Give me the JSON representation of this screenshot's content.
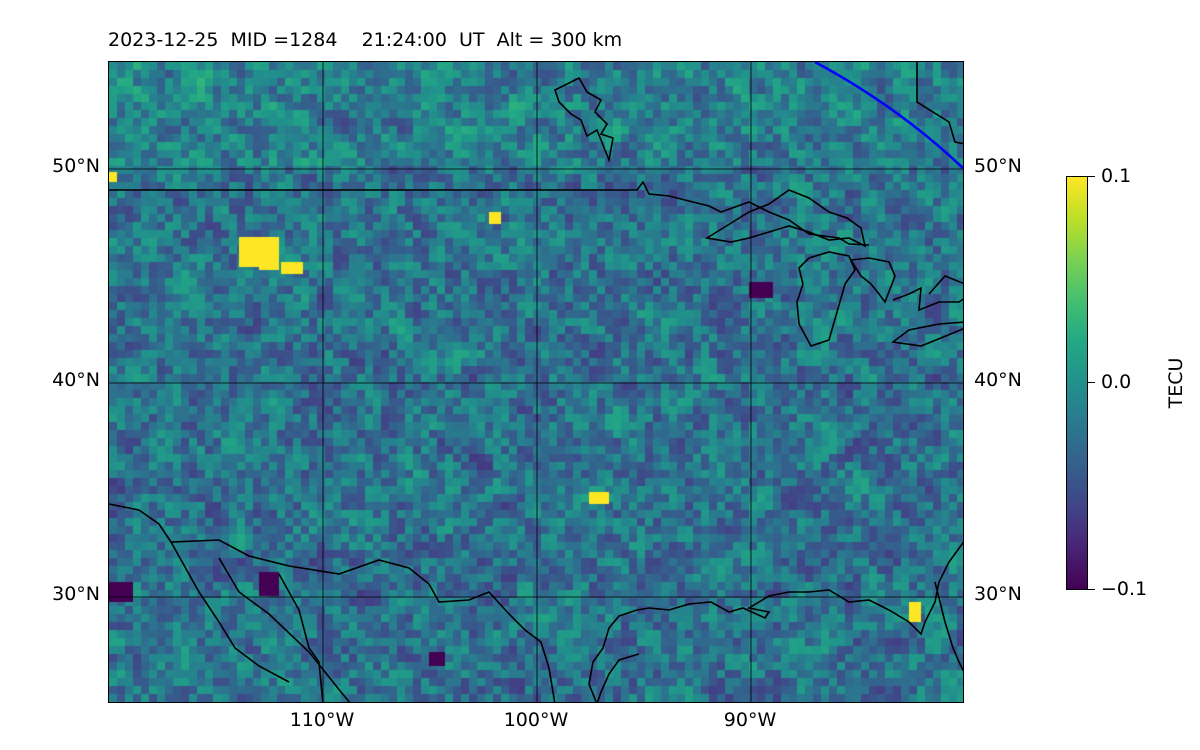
{
  "title": "2023-12-25  MID =1284    21:24:00  UT  Alt = 300 km",
  "map": {
    "lon_range": [
      -120,
      -80
    ],
    "lat_range": [
      25,
      55
    ],
    "colormap": "viridis",
    "value_range": [
      -0.1,
      0.1
    ],
    "gridlines": true,
    "features": [
      "coastlines",
      "country-borders",
      "great-lakes",
      "terminator-line"
    ],
    "terminator_color": "#0000ff",
    "lat_labels": [
      "50°N",
      "40°N",
      "30°N"
    ],
    "lon_labels": [
      "110°W",
      "100°W",
      "90°W"
    ]
  },
  "colorbar": {
    "label": "TECU",
    "ticks": [
      "0.1",
      "0.0",
      "−0.1"
    ]
  }
}
